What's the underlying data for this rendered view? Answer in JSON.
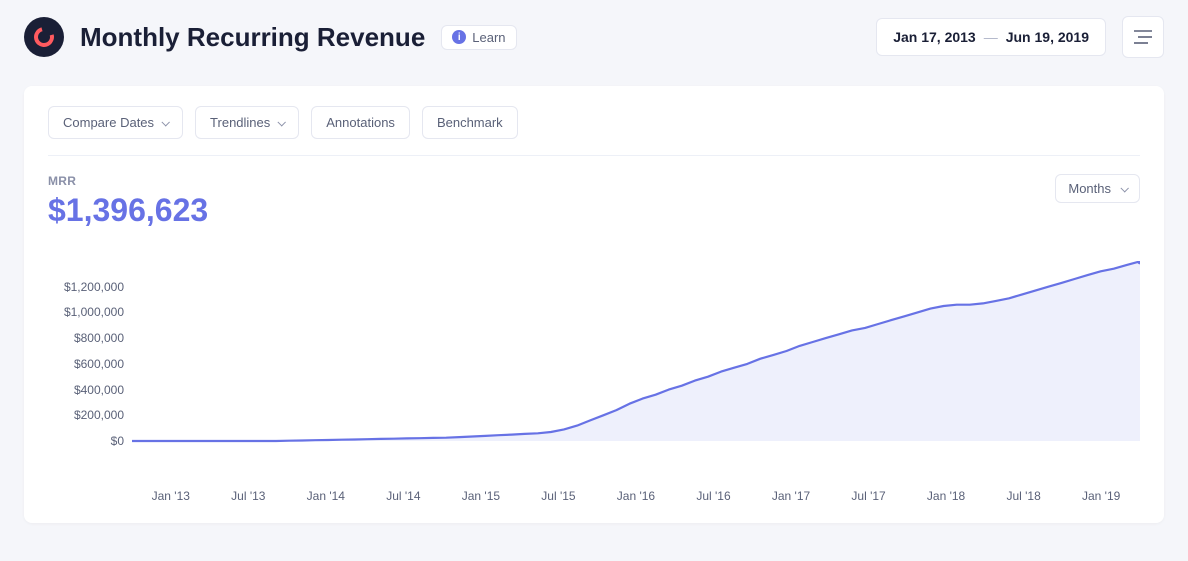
{
  "header": {
    "title": "Monthly Recurring Revenue",
    "learn_label": "Learn",
    "date_from": "Jan 17, 2013",
    "date_to": "Jun 19, 2019"
  },
  "toolbar": {
    "compare": "Compare Dates",
    "trendlines": "Trendlines",
    "annotations": "Annotations",
    "benchmark": "Benchmark"
  },
  "metric": {
    "label": "MRR",
    "value": "$1,396,623",
    "value_color": "#6772e5"
  },
  "granularity": {
    "label": "Months"
  },
  "chart": {
    "type": "area",
    "line_color": "#6772e5",
    "fill_color": "#eef0fc",
    "line_width": 2.2,
    "dot_color": "#6772e5",
    "dot_radius": 3,
    "yticks": [
      {
        "value": 0,
        "label": "$0"
      },
      {
        "value": 200000,
        "label": "$200,000"
      },
      {
        "value": 400000,
        "label": "$400,000"
      },
      {
        "value": 600000,
        "label": "$600,000"
      },
      {
        "value": 800000,
        "label": "$800,000"
      },
      {
        "value": 1000000,
        "label": "$1,000,000"
      },
      {
        "value": 1200000,
        "label": "$1,200,000"
      }
    ],
    "ydomain": [
      0,
      1400000
    ],
    "xticks": [
      "Jan '13",
      "Jul '13",
      "Jan '14",
      "Jul '14",
      "Jan '15",
      "Jul '15",
      "Jan '16",
      "Jul '16",
      "Jan '17",
      "Jul '17",
      "Jan '18",
      "Jul '18",
      "Jan '19"
    ],
    "xdomain": [
      0,
      77
    ],
    "series": [
      {
        "x": 0,
        "y": 0
      },
      {
        "x": 1,
        "y": 0
      },
      {
        "x": 2,
        "y": 0
      },
      {
        "x": 3,
        "y": 0
      },
      {
        "x": 4,
        "y": 0
      },
      {
        "x": 5,
        "y": 0
      },
      {
        "x": 6,
        "y": 0
      },
      {
        "x": 7,
        "y": 0
      },
      {
        "x": 8,
        "y": 0
      },
      {
        "x": 9,
        "y": 0
      },
      {
        "x": 10,
        "y": 0
      },
      {
        "x": 11,
        "y": 0
      },
      {
        "x": 12,
        "y": 2000
      },
      {
        "x": 13,
        "y": 4000
      },
      {
        "x": 14,
        "y": 6000
      },
      {
        "x": 15,
        "y": 8000
      },
      {
        "x": 16,
        "y": 10000
      },
      {
        "x": 17,
        "y": 12000
      },
      {
        "x": 18,
        "y": 14000
      },
      {
        "x": 19,
        "y": 16000
      },
      {
        "x": 20,
        "y": 18000
      },
      {
        "x": 21,
        "y": 20000
      },
      {
        "x": 22,
        "y": 22000
      },
      {
        "x": 23,
        "y": 24000
      },
      {
        "x": 24,
        "y": 26000
      },
      {
        "x": 25,
        "y": 30000
      },
      {
        "x": 26,
        "y": 35000
      },
      {
        "x": 27,
        "y": 40000
      },
      {
        "x": 28,
        "y": 45000
      },
      {
        "x": 29,
        "y": 50000
      },
      {
        "x": 30,
        "y": 55000
      },
      {
        "x": 31,
        "y": 60000
      },
      {
        "x": 32,
        "y": 70000
      },
      {
        "x": 33,
        "y": 90000
      },
      {
        "x": 34,
        "y": 120000
      },
      {
        "x": 35,
        "y": 160000
      },
      {
        "x": 36,
        "y": 200000
      },
      {
        "x": 37,
        "y": 240000
      },
      {
        "x": 38,
        "y": 290000
      },
      {
        "x": 39,
        "y": 330000
      },
      {
        "x": 40,
        "y": 360000
      },
      {
        "x": 41,
        "y": 400000
      },
      {
        "x": 42,
        "y": 430000
      },
      {
        "x": 43,
        "y": 470000
      },
      {
        "x": 44,
        "y": 500000
      },
      {
        "x": 45,
        "y": 540000
      },
      {
        "x": 46,
        "y": 570000
      },
      {
        "x": 47,
        "y": 600000
      },
      {
        "x": 48,
        "y": 640000
      },
      {
        "x": 49,
        "y": 670000
      },
      {
        "x": 50,
        "y": 700000
      },
      {
        "x": 51,
        "y": 740000
      },
      {
        "x": 52,
        "y": 770000
      },
      {
        "x": 53,
        "y": 800000
      },
      {
        "x": 54,
        "y": 830000
      },
      {
        "x": 55,
        "y": 860000
      },
      {
        "x": 56,
        "y": 880000
      },
      {
        "x": 57,
        "y": 910000
      },
      {
        "x": 58,
        "y": 940000
      },
      {
        "x": 59,
        "y": 970000
      },
      {
        "x": 60,
        "y": 1000000
      },
      {
        "x": 61,
        "y": 1030000
      },
      {
        "x": 62,
        "y": 1050000
      },
      {
        "x": 63,
        "y": 1060000
      },
      {
        "x": 64,
        "y": 1060000
      },
      {
        "x": 65,
        "y": 1070000
      },
      {
        "x": 66,
        "y": 1090000
      },
      {
        "x": 67,
        "y": 1110000
      },
      {
        "x": 68,
        "y": 1140000
      },
      {
        "x": 69,
        "y": 1170000
      },
      {
        "x": 70,
        "y": 1200000
      },
      {
        "x": 71,
        "y": 1230000
      },
      {
        "x": 72,
        "y": 1260000
      },
      {
        "x": 73,
        "y": 1290000
      },
      {
        "x": 74,
        "y": 1320000
      },
      {
        "x": 75,
        "y": 1340000
      },
      {
        "x": 76,
        "y": 1370000
      },
      {
        "x": 77,
        "y": 1396623
      }
    ]
  }
}
